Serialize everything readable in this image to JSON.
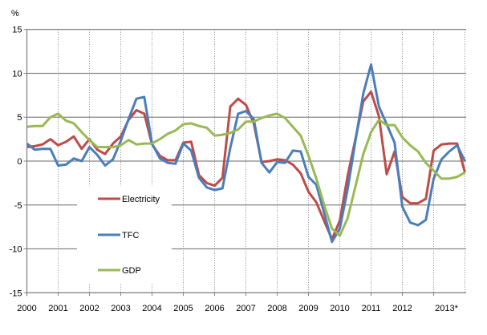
{
  "chart_data": {
    "type": "line",
    "title": "",
    "ylabel": "%",
    "xlabel": "",
    "ylim": [
      -15,
      15
    ],
    "xlim": [
      2000,
      2014
    ],
    "yticks": [
      "15",
      "10",
      "5",
      "0",
      "-5",
      "-10",
      "-15"
    ],
    "ytick_values": [
      15,
      10,
      5,
      0,
      -5,
      -10,
      -15
    ],
    "xticks": [
      "2000",
      "2001",
      "2002",
      "2003",
      "2004",
      "2005",
      "2006",
      "2007",
      "2008",
      "2009",
      "2010",
      "2011",
      "2012",
      "2013*"
    ],
    "xtick_values": [
      2000,
      2001,
      2002,
      2003,
      2004,
      2005,
      2006,
      2007,
      2008,
      2009,
      2010,
      2011,
      2012,
      2013
    ],
    "grid": {
      "horizontal": "solid",
      "vertical": "dotted"
    },
    "legend_placement": "left-inside",
    "x": [
      2000.0,
      2000.25,
      2000.5,
      2000.75,
      2001.0,
      2001.25,
      2001.5,
      2001.75,
      2002.0,
      2002.25,
      2002.5,
      2002.75,
      2003.0,
      2003.25,
      2003.5,
      2003.75,
      2004.0,
      2004.25,
      2004.5,
      2004.75,
      2005.0,
      2005.25,
      2005.5,
      2005.75,
      2006.0,
      2006.25,
      2006.5,
      2006.75,
      2007.0,
      2007.25,
      2007.5,
      2007.75,
      2008.0,
      2008.25,
      2008.5,
      2008.75,
      2009.0,
      2009.25,
      2009.5,
      2009.75,
      2010.0,
      2010.25,
      2010.5,
      2010.75,
      2011.0,
      2011.25,
      2011.5,
      2011.75,
      2012.0,
      2012.25,
      2012.5,
      2012.75,
      2013.0,
      2013.25,
      2013.5,
      2013.75,
      2014.0
    ],
    "series": [
      {
        "name": "Electricity",
        "color": "#be4b48",
        "values": [
          1.6,
          1.7,
          1.9,
          2.5,
          1.8,
          2.2,
          2.8,
          1.4,
          2.5,
          1.3,
          0.8,
          2.0,
          2.8,
          4.7,
          5.8,
          5.4,
          1.9,
          0.6,
          0.1,
          0.1,
          2.1,
          2.2,
          -1.6,
          -2.5,
          -2.8,
          -1.9,
          6.2,
          7.1,
          6.4,
          4.3,
          -0.1,
          0.0,
          0.2,
          0.1,
          -0.4,
          -1.4,
          -3.5,
          -4.7,
          -6.8,
          -8.9,
          -6.8,
          -1.7,
          2.5,
          6.8,
          7.9,
          5.1,
          -1.5,
          1.1,
          -4.1,
          -4.8,
          -4.8,
          -4.3,
          1.2,
          1.9,
          2.0,
          2.0,
          -1.3
        ]
      },
      {
        "name": "TFC",
        "color": "#4a7ebb",
        "values": [
          2.0,
          1.3,
          1.4,
          1.4,
          -0.5,
          -0.4,
          0.3,
          0.0,
          1.6,
          0.7,
          -0.5,
          0.2,
          2.3,
          4.8,
          7.1,
          7.3,
          2.0,
          0.3,
          -0.2,
          -0.3,
          2.0,
          1.2,
          -1.9,
          -3.0,
          -3.3,
          -3.1,
          1.5,
          5.4,
          5.7,
          4.8,
          -0.2,
          -1.3,
          -0.1,
          -0.2,
          1.2,
          1.1,
          -1.8,
          -2.7,
          -5.9,
          -9.2,
          -7.7,
          -3.2,
          2.3,
          7.7,
          11.0,
          6.2,
          4.2,
          2.1,
          -5.2,
          -7.0,
          -7.3,
          -6.7,
          -2.0,
          0.2,
          1.1,
          1.8,
          0.0
        ]
      },
      {
        "name": "GDP",
        "color": "#98b954",
        "values": [
          3.9,
          4.0,
          4.0,
          5.0,
          5.4,
          4.6,
          4.3,
          3.3,
          2.4,
          1.6,
          1.6,
          1.6,
          1.8,
          2.4,
          1.9,
          2.0,
          2.0,
          2.5,
          3.1,
          3.5,
          4.2,
          4.3,
          4.0,
          3.8,
          2.9,
          3.0,
          3.2,
          3.6,
          4.5,
          4.5,
          4.9,
          5.2,
          5.4,
          4.9,
          3.9,
          2.9,
          0.6,
          -2.0,
          -5.0,
          -7.7,
          -8.5,
          -6.5,
          -2.9,
          0.8,
          3.3,
          4.7,
          4.1,
          4.1,
          2.7,
          1.8,
          1.1,
          -0.2,
          -1.1,
          -2.0,
          -2.0,
          -1.8,
          -1.3
        ]
      }
    ]
  }
}
